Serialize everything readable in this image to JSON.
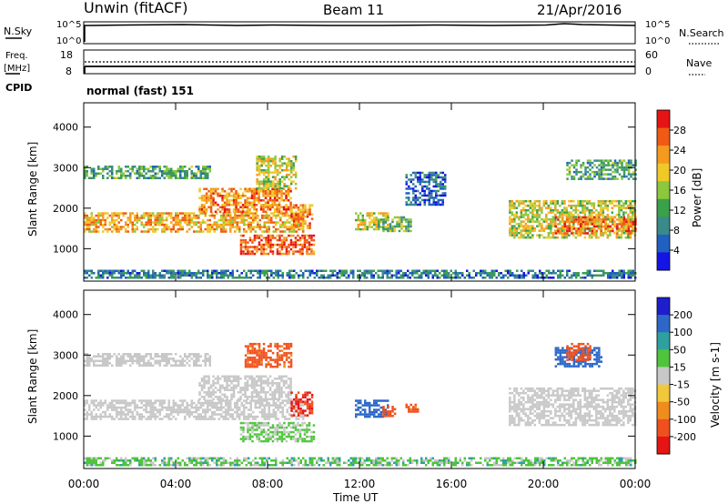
{
  "header": {
    "station": "Unwin (fitACF)",
    "beam": "Beam 11",
    "date": "21/Apr/2016"
  },
  "status_panels": {
    "nsky_label": "N.Sky",
    "nsky_ticks": [
      "10^5",
      "10^0"
    ],
    "nsearch_label": "N.Search",
    "nsearch_ticks": [
      "10^5",
      "10^0"
    ],
    "freq_label": "Freq.",
    "freq_unit": "[MHz]",
    "freq_ticks": [
      "18",
      "8"
    ],
    "nave_label": "Nave",
    "nave_ticks": [
      "60",
      "0"
    ],
    "cpid_label": "CPID",
    "cpid_value": "normal (fast) 151"
  },
  "colors": {
    "power": [
      "#1414e6",
      "#2060c0",
      "#3a8a8a",
      "#3aa04a",
      "#8cc83c",
      "#f0c828",
      "#f59a1e",
      "#f05a14",
      "#e61414"
    ],
    "velocity": [
      "#1e1ecc",
      "#2d68c8",
      "#2fa0a0",
      "#4fc43c",
      "#c8c8c8",
      "#f0c83c",
      "#f08c1e",
      "#f0501e",
      "#e61414"
    ],
    "ground_scatter": "#c8c8c8"
  },
  "chart_data": [
    {
      "type": "heatmap",
      "name": "power",
      "ylabel": "Slant Range [km]",
      "yticks": [
        1000,
        2000,
        3000,
        4000
      ],
      "ylim": [
        200,
        4600
      ],
      "xlim_hours": [
        0,
        24
      ],
      "colorbar_label": "Power [dB]",
      "colorbar_ticks": [
        "28",
        "24",
        "20",
        "16",
        "12",
        "8",
        "4"
      ],
      "regions": [
        {
          "t0": 0.0,
          "t1": 9.6,
          "r0": 1450,
          "r1": 1900,
          "v": 22
        },
        {
          "t0": 0.0,
          "t1": 5.5,
          "r0": 2750,
          "r1": 3050,
          "v": 12
        },
        {
          "t0": 5.0,
          "t1": 9.0,
          "r0": 1900,
          "r1": 2500,
          "v": 24
        },
        {
          "t0": 7.5,
          "t1": 9.2,
          "r0": 2500,
          "r1": 3300,
          "v": 18
        },
        {
          "t0": 6.8,
          "t1": 10.0,
          "r0": 850,
          "r1": 1350,
          "v": 27
        },
        {
          "t0": 9.0,
          "t1": 9.9,
          "r0": 1500,
          "r1": 2100,
          "v": 24
        },
        {
          "t0": 11.8,
          "t1": 13.2,
          "r0": 1500,
          "r1": 1900,
          "v": 18
        },
        {
          "t0": 12.8,
          "t1": 14.2,
          "r0": 1450,
          "r1": 1800,
          "v": 14
        },
        {
          "t0": 14.0,
          "t1": 15.7,
          "r0": 2100,
          "r1": 2900,
          "v": 6
        },
        {
          "t0": 18.5,
          "t1": 24.0,
          "r0": 1300,
          "r1": 2200,
          "v": 18
        },
        {
          "t0": 20.5,
          "t1": 24.0,
          "r0": 1400,
          "r1": 1800,
          "v": 26
        },
        {
          "t0": 21.0,
          "t1": 24.0,
          "r0": 2700,
          "r1": 3200,
          "v": 12
        },
        {
          "t0": 0.0,
          "t1": 24.0,
          "r0": 280,
          "r1": 480,
          "v": 8
        }
      ]
    },
    {
      "type": "heatmap",
      "name": "velocity",
      "ylabel": "Slant Range [km]",
      "yticks": [
        1000,
        2000,
        3000,
        4000
      ],
      "ylim": [
        200,
        4600
      ],
      "xlim_hours": [
        0,
        24
      ],
      "colorbar_label": "Velocity [m s-1]",
      "colorbar_ticks": [
        "200",
        "100",
        "50",
        "15",
        "-15",
        "-50",
        "-100",
        "-200"
      ],
      "regions": [
        {
          "t0": 0.0,
          "t1": 9.6,
          "r0": 1450,
          "r1": 1900,
          "v": 0,
          "gs": true
        },
        {
          "t0": 0.0,
          "t1": 5.5,
          "r0": 2750,
          "r1": 3050,
          "v": 0,
          "gs": true
        },
        {
          "t0": 5.0,
          "t1": 9.0,
          "r0": 1900,
          "r1": 2500,
          "v": 0,
          "gs": true
        },
        {
          "t0": 7.0,
          "t1": 9.0,
          "r0": 2700,
          "r1": 3300,
          "v": -120
        },
        {
          "t0": 6.8,
          "t1": 10.0,
          "r0": 850,
          "r1": 1350,
          "v": 20
        },
        {
          "t0": 9.0,
          "t1": 9.9,
          "r0": 1500,
          "r1": 2100,
          "v": -200
        },
        {
          "t0": 11.8,
          "t1": 13.2,
          "r0": 1500,
          "r1": 1900,
          "v": 150
        },
        {
          "t0": 13.0,
          "t1": 13.5,
          "r0": 1500,
          "r1": 1750,
          "v": -150
        },
        {
          "t0": 14.0,
          "t1": 14.5,
          "r0": 1600,
          "r1": 1800,
          "v": -120
        },
        {
          "t0": 18.5,
          "t1": 24.0,
          "r0": 1300,
          "r1": 2200,
          "v": 0,
          "gs": true
        },
        {
          "t0": 20.5,
          "t1": 22.5,
          "r0": 2700,
          "r1": 3200,
          "v": 150
        },
        {
          "t0": 21.0,
          "t1": 22.0,
          "r0": 2900,
          "r1": 3300,
          "v": -150
        },
        {
          "t0": 0.0,
          "t1": 24.0,
          "r0": 280,
          "r1": 480,
          "v": 30
        }
      ]
    }
  ],
  "x_axis": {
    "label": "Time UT",
    "ticks": [
      "00:00",
      "04:00",
      "08:00",
      "12:00",
      "16:00",
      "20:00",
      "00:00"
    ]
  }
}
